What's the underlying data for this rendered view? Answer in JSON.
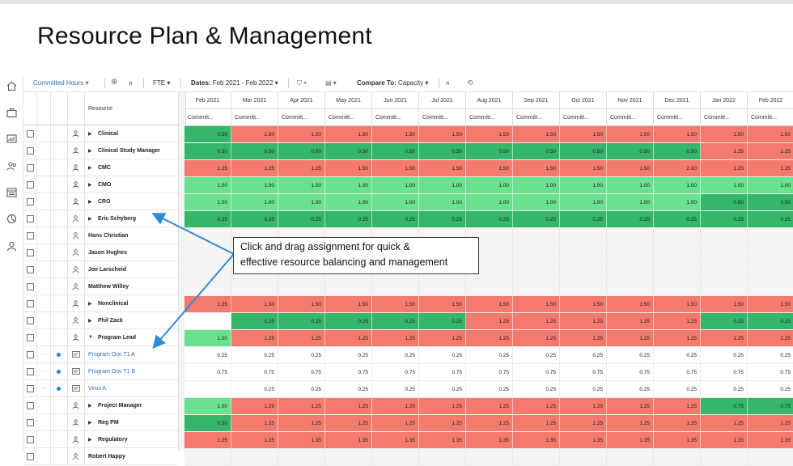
{
  "page_title": "Resource Plan & Management",
  "toolbar": {
    "committed_hours": "Committed Hours",
    "fte": "FTE",
    "dates_label": "Dates:",
    "dates_value": "Feb 2021 - Feb 2022",
    "compare_label": "Compare To:",
    "compare_value": "Capacity"
  },
  "grid": {
    "resource_header": "Resource",
    "months": [
      "Feb 2021",
      "Mar 2021",
      "Apr 2021",
      "May 2021",
      "Jun 2021",
      "Jul 2021",
      "Aug 2021",
      "Sep 2021",
      "Oct 2021",
      "Nov 2021",
      "Dec 2021",
      "Jan 2022",
      "Feb 2022"
    ],
    "subheader": "Committ...",
    "rows": [
      {
        "name": "Clinical",
        "bold": true,
        "arrow": "right",
        "icon": "group-icon",
        "dot": false,
        "values": [
          "0.50",
          "1.50",
          "1.50",
          "1.50",
          "1.50",
          "1.50",
          "1.50",
          "1.50",
          "1.50",
          "1.50",
          "1.50",
          "1.50",
          "1.50"
        ],
        "colors": [
          "g2",
          "g1",
          "g1",
          "g1",
          "g1",
          "g1",
          "g1",
          "g1",
          "g1",
          "g1",
          "g1",
          "g1",
          "g1"
        ]
      },
      {
        "name": "Clinical Study Manager",
        "bold": true,
        "arrow": "right",
        "icon": "group-icon",
        "dot": false,
        "values": [
          "0.50",
          "0.50",
          "0.50",
          "0.50",
          "0.50",
          "0.50",
          "0.50",
          "0.50",
          "0.50",
          "0.50",
          "0.50",
          "1.25",
          "1.25"
        ],
        "colors": [
          "g2",
          "g2",
          "g2",
          "g2",
          "g2",
          "g2",
          "g2",
          "g2",
          "g2",
          "g2",
          "g2",
          "g1",
          "g1"
        ]
      },
      {
        "name": "CMC",
        "bold": true,
        "arrow": "right",
        "icon": "group-icon",
        "dot": false,
        "values": [
          "1.25",
          "1.25",
          "1.25",
          "1.50",
          "1.50",
          "1.50",
          "1.50",
          "1.50",
          "1.50",
          "1.50",
          "2.00",
          "1.25",
          "1.25"
        ],
        "colors": [
          "g1",
          "g1",
          "g1",
          "g1",
          "g1",
          "g1",
          "g1",
          "g1",
          "g1",
          "g1",
          "g1",
          "g1",
          "g1"
        ]
      },
      {
        "name": "CMO",
        "bold": true,
        "arrow": "right",
        "icon": "group-icon",
        "dot": false,
        "values": [
          "1.00",
          "1.00",
          "1.00",
          "1.00",
          "1.00",
          "1.00",
          "1.00",
          "1.00",
          "1.00",
          "1.00",
          "1.00",
          "1.00",
          "1.00"
        ],
        "colors": [
          "g3",
          "g3",
          "g3",
          "g3",
          "g3",
          "g3",
          "g3",
          "g3",
          "g3",
          "g3",
          "g3",
          "g3",
          "g3"
        ]
      },
      {
        "name": "CRO",
        "bold": true,
        "arrow": "right",
        "icon": "group-icon",
        "dot": false,
        "values": [
          "1.00",
          "1.00",
          "1.00",
          "1.00",
          "1.00",
          "1.00",
          "1.00",
          "1.00",
          "1.00",
          "1.00",
          "1.00",
          "0.50",
          "0.50"
        ],
        "colors": [
          "g3",
          "g3",
          "g3",
          "g3",
          "g3",
          "g3",
          "g3",
          "g3",
          "g3",
          "g3",
          "g3",
          "g2",
          "g2"
        ]
      },
      {
        "name": "Eric Schyberg",
        "bold": true,
        "arrow": "right",
        "icon": "person-icon",
        "dot": false,
        "values": [
          "0.25",
          "0.25",
          "0.25",
          "0.25",
          "0.25",
          "0.25",
          "0.25",
          "0.25",
          "0.25",
          "0.25",
          "0.25",
          "0.25",
          "0.25"
        ],
        "colors": [
          "g2",
          "g2",
          "g2",
          "g2",
          "g2",
          "g2",
          "g2",
          "g2",
          "g2",
          "g2",
          "g2",
          "g2",
          "g2"
        ]
      },
      {
        "name": "Hans Christian",
        "bold": true,
        "arrow": "",
        "icon": "person-icon",
        "dot": false,
        "values": [
          "",
          "",
          "",
          "",
          "",
          "",
          "",
          "",
          "",
          "",
          "",
          "",
          ""
        ],
        "colors": [
          "g4",
          "g4",
          "g4",
          "g4",
          "g4",
          "g4",
          "g4",
          "g4",
          "g4",
          "g4",
          "g4",
          "g4",
          "g4"
        ]
      },
      {
        "name": "Jason Hughes",
        "bold": true,
        "arrow": "",
        "icon": "person-icon",
        "dot": false,
        "values": [
          "",
          "",
          "",
          "",
          "",
          "",
          "",
          "",
          "",
          "",
          "",
          "",
          ""
        ],
        "colors": [
          "g4",
          "g4",
          "g4",
          "g4",
          "g4",
          "g4",
          "g4",
          "g4",
          "g4",
          "g4",
          "g4",
          "g4",
          "g4"
        ]
      },
      {
        "name": "Joe Larscheid",
        "bold": true,
        "arrow": "",
        "icon": "person-icon",
        "dot": false,
        "values": [
          "",
          "",
          "",
          "",
          "",
          "",
          "",
          "",
          "",
          "",
          "",
          "",
          ""
        ],
        "colors": [
          "g4",
          "g4",
          "g4",
          "g4",
          "g4",
          "g4",
          "g4",
          "g4",
          "g4",
          "g4",
          "g4",
          "g4",
          "g4"
        ]
      },
      {
        "name": "Matthew Willey",
        "bold": true,
        "arrow": "",
        "icon": "person-icon",
        "dot": false,
        "values": [
          "",
          "",
          "",
          "",
          "",
          "",
          "",
          "",
          "",
          "",
          "",
          "",
          ""
        ],
        "colors": [
          "g4",
          "g4",
          "g4",
          "g4",
          "g4",
          "g4",
          "g4",
          "g4",
          "g4",
          "g4",
          "g4",
          "g4",
          "g4"
        ]
      },
      {
        "name": "Nonclinical",
        "bold": true,
        "arrow": "right",
        "icon": "group-icon",
        "dot": false,
        "values": [
          "1.25",
          "1.50",
          "1.50",
          "1.50",
          "1.50",
          "1.50",
          "1.50",
          "1.50",
          "1.50",
          "1.50",
          "1.50",
          "1.50",
          "1.50"
        ],
        "colors": [
          "g1",
          "g1",
          "g1",
          "g1",
          "g1",
          "g1",
          "g1",
          "g1",
          "g1",
          "g1",
          "g1",
          "g1",
          "g1"
        ]
      },
      {
        "name": "Phil Zack",
        "bold": true,
        "arrow": "right",
        "icon": "person-icon",
        "dot": false,
        "values": [
          "",
          "0.25",
          "0.25",
          "0.25",
          "0.25",
          "0.25",
          "1.25",
          "1.25",
          "1.25",
          "1.25",
          "1.25",
          "0.25",
          "0.25"
        ],
        "colors": [
          "g0",
          "g2",
          "g2",
          "g2",
          "g2",
          "g2",
          "g1",
          "g1",
          "g1",
          "g1",
          "g1",
          "g2",
          "g2"
        ]
      },
      {
        "name": "Program Lead",
        "bold": true,
        "arrow": "down",
        "icon": "group-icon",
        "dot": false,
        "values": [
          "1.00",
          "1.25",
          "1.25",
          "1.25",
          "1.25",
          "1.25",
          "1.25",
          "1.25",
          "1.25",
          "1.25",
          "1.25",
          "1.25",
          "1.25"
        ],
        "colors": [
          "g3",
          "g1",
          "g1",
          "g1",
          "g1",
          "g1",
          "g1",
          "g1",
          "g1",
          "g1",
          "g1",
          "g1",
          "g1"
        ]
      },
      {
        "name": "Program Onc T1 A",
        "bold": false,
        "arrow": "",
        "icon": "assignment-icon",
        "dot": true,
        "values": [
          "0.25",
          "0.25",
          "0.25",
          "0.25",
          "0.25",
          "0.25",
          "0.25",
          "0.25",
          "0.25",
          "0.25",
          "0.25",
          "0.25",
          "0.25"
        ],
        "colors": [
          "g0",
          "g0",
          "g0",
          "g0",
          "g0",
          "g0",
          "g0",
          "g0",
          "g0",
          "g0",
          "g0",
          "g0",
          "g0"
        ]
      },
      {
        "name": "Program Onc T1 B",
        "bold": false,
        "arrow": "",
        "icon": "assignment-icon",
        "dot": true,
        "values": [
          "0.75",
          "0.75",
          "0.75",
          "0.75",
          "0.75",
          "0.75",
          "0.75",
          "0.75",
          "0.75",
          "0.75",
          "0.75",
          "0.75",
          "0.75"
        ],
        "colors": [
          "g0",
          "g0",
          "g0",
          "g0",
          "g0",
          "g0",
          "g0",
          "g0",
          "g0",
          "g0",
          "g0",
          "g0",
          "g0"
        ]
      },
      {
        "name": "Virus A",
        "bold": false,
        "arrow": "",
        "icon": "assignment-icon",
        "dot": true,
        "values": [
          "",
          "0.25",
          "0.25",
          "0.25",
          "0.25",
          "0.25",
          "0.25",
          "0.25",
          "0.25",
          "0.25",
          "0.25",
          "0.25",
          "0.25"
        ],
        "colors": [
          "g0",
          "g0",
          "g0",
          "g0",
          "g0",
          "g0",
          "g0",
          "g0",
          "g0",
          "g0",
          "g0",
          "g0",
          "g0"
        ]
      },
      {
        "name": "Project Manager",
        "bold": true,
        "arrow": "right",
        "icon": "group-icon",
        "dot": false,
        "values": [
          "1.00",
          "1.25",
          "1.25",
          "1.25",
          "1.25",
          "1.25",
          "1.25",
          "1.25",
          "1.25",
          "1.25",
          "1.25",
          "0.75",
          "0.75"
        ],
        "colors": [
          "g3",
          "g1",
          "g1",
          "g1",
          "g1",
          "g1",
          "g1",
          "g1",
          "g1",
          "g1",
          "g1",
          "g2",
          "g2"
        ]
      },
      {
        "name": "Reg PM",
        "bold": true,
        "arrow": "right",
        "icon": "group-icon",
        "dot": false,
        "values": [
          "0.50",
          "1.25",
          "1.25",
          "1.25",
          "1.25",
          "1.25",
          "1.25",
          "1.25",
          "1.25",
          "1.25",
          "1.25",
          "1.25",
          "1.25"
        ],
        "colors": [
          "g2",
          "g1",
          "g1",
          "g1",
          "g1",
          "g1",
          "g1",
          "g1",
          "g1",
          "g1",
          "g1",
          "g1",
          "g1"
        ]
      },
      {
        "name": "Regulatory",
        "bold": true,
        "arrow": "right",
        "icon": "group-icon",
        "dot": false,
        "values": [
          "1.25",
          "1.35",
          "1.35",
          "1.35",
          "1.35",
          "1.35",
          "1.35",
          "1.35",
          "1.35",
          "1.35",
          "1.35",
          "1.35",
          "1.35"
        ],
        "colors": [
          "g1",
          "g1",
          "g1",
          "g1",
          "g1",
          "g1",
          "g1",
          "g1",
          "g1",
          "g1",
          "g1",
          "g1",
          "g1"
        ]
      },
      {
        "name": "Robert Happy",
        "bold": true,
        "arrow": "",
        "icon": "person-icon",
        "dot": false,
        "values": [
          "",
          "",
          "",
          "",
          "",
          "",
          "",
          "",
          "",
          "",
          "",
          "",
          ""
        ],
        "colors": [
          "g4",
          "g4",
          "g4",
          "g4",
          "g4",
          "g4",
          "g4",
          "g4",
          "g4",
          "g4",
          "g4",
          "g4",
          "g4"
        ]
      }
    ]
  },
  "callout": {
    "line1": "Click and drag assignment for quick &",
    "line2": "effective resource balancing and management"
  }
}
